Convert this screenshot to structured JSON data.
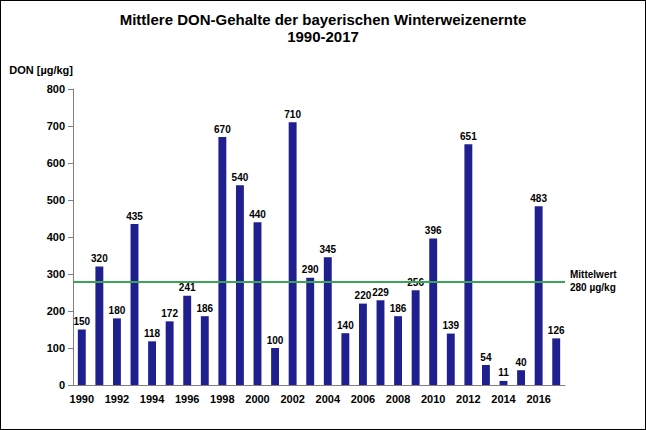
{
  "chart_data": {
    "type": "bar",
    "title": "Mittlere DON-Gehalte der bayerischen Winterweizenernte",
    "subtitle": "1990-2017",
    "ylabel": "DON [µg/kg]",
    "categories": [
      "1990",
      null,
      "1992",
      null,
      "1994",
      null,
      "1996",
      null,
      "1998",
      null,
      "2000",
      null,
      "2002",
      null,
      "2004",
      null,
      "2006",
      null,
      "2008",
      null,
      "2010",
      null,
      "2012",
      null,
      "2014",
      null,
      "2016",
      null
    ],
    "values": [
      150,
      320,
      180,
      435,
      118,
      172,
      241,
      186,
      670,
      540,
      440,
      100,
      710,
      290,
      345,
      140,
      220,
      229,
      186,
      256,
      396,
      139,
      651,
      54,
      11,
      40,
      483,
      126
    ],
    "color": "#1f1f8f",
    "ylim": [
      0,
      800
    ],
    "yticks": [
      0,
      100,
      200,
      300,
      400,
      500,
      600,
      700,
      800
    ],
    "grid": false,
    "data_labels": true,
    "reference_line": {
      "value": 280,
      "label": "Mittelwert\n280 µg/kg",
      "color": "#3aa655"
    }
  }
}
